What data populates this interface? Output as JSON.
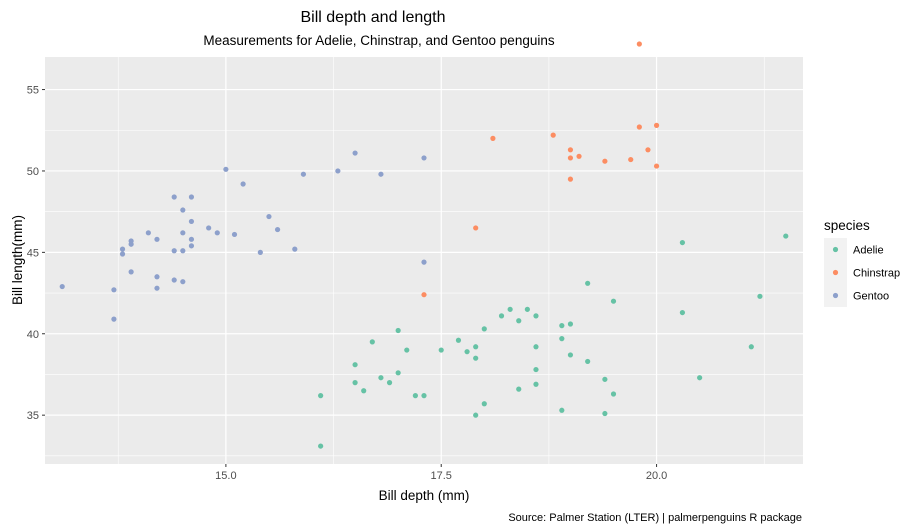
{
  "chart_data": {
    "type": "scatter",
    "title": "Bill depth and length",
    "subtitle": "Measurements for Adelie, Chinstrap, and Gentoo penguins",
    "xlabel": "Bill depth (mm)",
    "ylabel": "Bill length(mm)",
    "caption": "Source: Palmer Station (LTER) | palmerpenguins R package",
    "xlim": [
      12.9,
      21.7
    ],
    "ylim": [
      32.0,
      57.0
    ],
    "x_ticks": [
      15.0,
      17.5,
      20.0
    ],
    "x_tick_labels": [
      "15.0",
      "17.5",
      "20.0"
    ],
    "y_ticks": [
      35,
      40,
      45,
      50,
      55
    ],
    "y_tick_labels": [
      "35",
      "40",
      "45",
      "50",
      "55"
    ],
    "grid": true,
    "legend": {
      "title": "species",
      "position": "right"
    },
    "series": [
      {
        "name": "Adelie",
        "color": "#66c2a5",
        "points": [
          [
            21.5,
            46.0
          ],
          [
            20.3,
            45.6
          ],
          [
            21.2,
            42.3
          ],
          [
            20.3,
            41.3
          ],
          [
            21.1,
            39.2
          ],
          [
            20.5,
            37.3
          ],
          [
            19.2,
            43.1
          ],
          [
            19.5,
            42.0
          ],
          [
            19.0,
            40.6
          ],
          [
            18.9,
            40.5
          ],
          [
            18.9,
            39.7
          ],
          [
            19.0,
            38.7
          ],
          [
            19.2,
            38.3
          ],
          [
            19.4,
            37.2
          ],
          [
            19.5,
            36.3
          ],
          [
            19.4,
            35.1
          ],
          [
            18.9,
            35.3
          ],
          [
            18.6,
            41.1
          ],
          [
            18.5,
            41.5
          ],
          [
            18.3,
            41.5
          ],
          [
            18.4,
            40.8
          ],
          [
            18.2,
            41.1
          ],
          [
            18.0,
            40.3
          ],
          [
            18.6,
            39.2
          ],
          [
            18.6,
            37.8
          ],
          [
            18.6,
            36.9
          ],
          [
            18.4,
            36.6
          ],
          [
            17.9,
            39.2
          ],
          [
            17.9,
            38.5
          ],
          [
            17.8,
            38.9
          ],
          [
            17.7,
            39.6
          ],
          [
            17.5,
            39.0
          ],
          [
            18.0,
            35.7
          ],
          [
            17.9,
            35.0
          ],
          [
            17.0,
            40.2
          ],
          [
            17.1,
            39.0
          ],
          [
            16.7,
            39.5
          ],
          [
            17.0,
            37.6
          ],
          [
            16.8,
            37.3
          ],
          [
            16.9,
            37.0
          ],
          [
            17.2,
            36.2
          ],
          [
            17.3,
            36.2
          ],
          [
            16.5,
            38.1
          ],
          [
            16.5,
            37.0
          ],
          [
            16.6,
            36.5
          ],
          [
            16.1,
            36.2
          ],
          [
            16.1,
            33.1
          ]
        ]
      },
      {
        "name": "Chinstrap",
        "color": "#fc8d62",
        "points": [
          [
            19.8,
            57.8
          ],
          [
            18.8,
            52.2
          ],
          [
            18.1,
            52.0
          ],
          [
            19.8,
            52.7
          ],
          [
            20.0,
            52.8
          ],
          [
            19.0,
            51.3
          ],
          [
            19.9,
            51.3
          ],
          [
            19.1,
            50.9
          ],
          [
            19.0,
            50.8
          ],
          [
            19.4,
            50.6
          ],
          [
            19.7,
            50.7
          ],
          [
            20.0,
            50.3
          ],
          [
            19.0,
            49.5
          ],
          [
            17.9,
            46.5
          ],
          [
            17.3,
            42.4
          ]
        ]
      },
      {
        "name": "Gentoo",
        "color": "#8da0cb",
        "points": [
          [
            15.0,
            50.1
          ],
          [
            16.5,
            51.1
          ],
          [
            17.3,
            50.8
          ],
          [
            15.2,
            49.2
          ],
          [
            15.9,
            49.8
          ],
          [
            16.3,
            50.0
          ],
          [
            16.8,
            49.8
          ],
          [
            14.4,
            48.4
          ],
          [
            14.6,
            48.4
          ],
          [
            14.5,
            47.6
          ],
          [
            15.5,
            47.2
          ],
          [
            14.6,
            46.9
          ],
          [
            14.8,
            46.5
          ],
          [
            14.5,
            46.2
          ],
          [
            14.9,
            46.2
          ],
          [
            14.1,
            46.2
          ],
          [
            15.1,
            46.1
          ],
          [
            15.6,
            46.4
          ],
          [
            14.2,
            45.8
          ],
          [
            14.6,
            45.8
          ],
          [
            14.6,
            45.4
          ],
          [
            13.9,
            45.7
          ],
          [
            13.9,
            45.5
          ],
          [
            13.8,
            45.2
          ],
          [
            14.4,
            45.1
          ],
          [
            14.5,
            45.1
          ],
          [
            15.4,
            45.0
          ],
          [
            15.8,
            45.2
          ],
          [
            13.8,
            44.9
          ],
          [
            17.3,
            44.4
          ],
          [
            13.9,
            43.8
          ],
          [
            14.2,
            43.5
          ],
          [
            14.4,
            43.3
          ],
          [
            14.5,
            43.2
          ],
          [
            14.2,
            42.8
          ],
          [
            13.7,
            42.7
          ],
          [
            13.1,
            42.9
          ],
          [
            13.7,
            40.9
          ]
        ]
      }
    ]
  }
}
